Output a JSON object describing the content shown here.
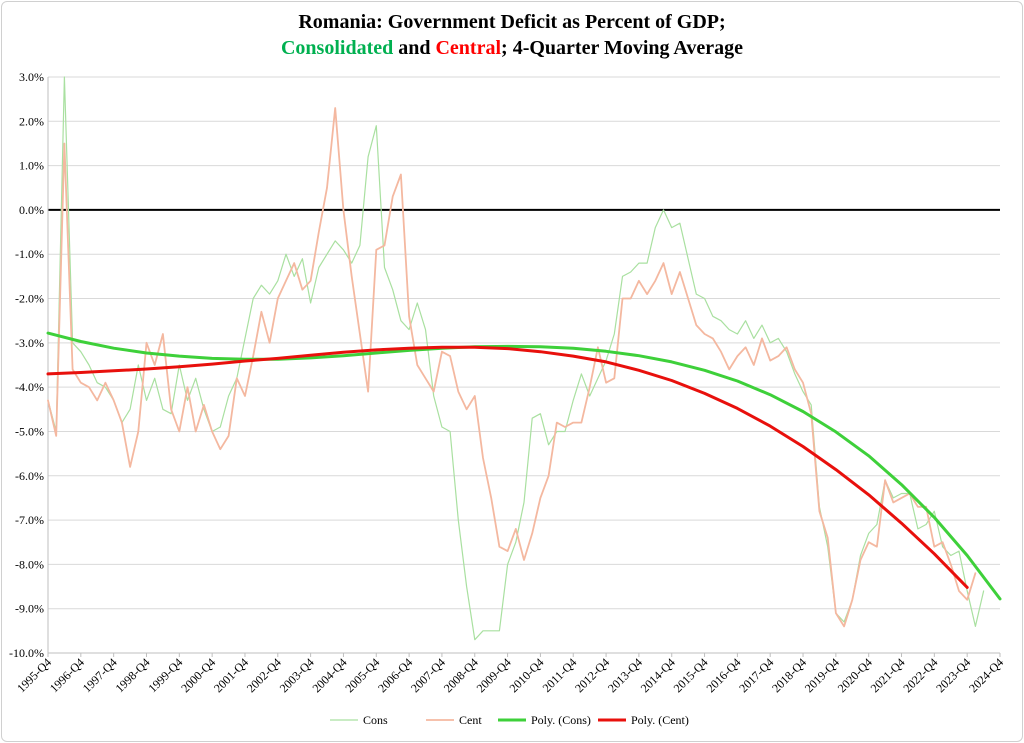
{
  "chart_data": {
    "type": "line",
    "title_prefix": "Romania: Government Deficit as Percent of GDP;",
    "title_line2": [
      {
        "text": "Consolidated",
        "color": "#00b050"
      },
      {
        "text": " and ",
        "color": "#000000"
      },
      {
        "text": "Central",
        "color": "#ff0000"
      },
      {
        "text": "; 4-Quarter Moving Average",
        "color": "#000000"
      }
    ],
    "ylim": [
      -10,
      3
    ],
    "yticks": [
      3,
      2,
      1,
      0,
      -1,
      -2,
      -3,
      -4,
      -5,
      -6,
      -7,
      -8,
      -9,
      -10
    ],
    "ytick_labels": [
      "3.0%",
      "2.0%",
      "1.0%",
      "0.0%",
      "-1.0%",
      "-2.0%",
      "-3.0%",
      "-4.0%",
      "-5.0%",
      "-6.0%",
      "-7.0%",
      "-8.0%",
      "-9.0%",
      "-10.0%"
    ],
    "x_start": {
      "year": 1995,
      "quarter": 4
    },
    "n_quarters": 117,
    "xtick_labels": [
      "1995-Q4",
      "1996-Q4",
      "1997-Q4",
      "1998-Q4",
      "1999-Q4",
      "2000-Q4",
      "2001-Q4",
      "2002-Q4",
      "2003-Q4",
      "2004-Q4",
      "2005-Q4",
      "2006-Q4",
      "2007-Q4",
      "2008-Q4",
      "2009-Q4",
      "2010-Q4",
      "2011-Q4",
      "2012-Q4",
      "2013-Q4",
      "2014-Q4",
      "2015-Q4",
      "2016-Q4",
      "2017-Q4",
      "2018-Q4",
      "2019-Q4",
      "2020-Q4",
      "2021-Q4",
      "2022-Q4",
      "2023-Q4",
      "2024-Q4"
    ],
    "grid": true,
    "legend_position": "bottom-center",
    "series": [
      {
        "name": "Cons",
        "color": "#a9e0a0",
        "width": 1.2,
        "points": [
          [
            0,
            -4.3
          ],
          [
            1,
            -5.0
          ],
          [
            2,
            3.0
          ],
          [
            3,
            -3.0
          ],
          [
            4,
            -3.2
          ],
          [
            5,
            -3.5
          ],
          [
            6,
            -3.9
          ],
          [
            7,
            -4.0
          ],
          [
            8,
            -4.3
          ],
          [
            9,
            -4.8
          ],
          [
            10,
            -4.5
          ],
          [
            11,
            -3.5
          ],
          [
            12,
            -4.3
          ],
          [
            13,
            -3.8
          ],
          [
            14,
            -4.5
          ],
          [
            15,
            -4.6
          ],
          [
            16,
            -3.5
          ],
          [
            17,
            -4.3
          ],
          [
            18,
            -3.8
          ],
          [
            19,
            -4.5
          ],
          [
            20,
            -5.0
          ],
          [
            21,
            -4.9
          ],
          [
            22,
            -4.2
          ],
          [
            23,
            -3.8
          ],
          [
            24,
            -2.9
          ],
          [
            25,
            -2.0
          ],
          [
            26,
            -1.7
          ],
          [
            27,
            -1.9
          ],
          [
            28,
            -1.6
          ],
          [
            29,
            -1.0
          ],
          [
            30,
            -1.5
          ],
          [
            31,
            -1.1
          ],
          [
            32,
            -2.1
          ],
          [
            33,
            -1.3
          ],
          [
            34,
            -1.0
          ],
          [
            35,
            -0.7
          ],
          [
            36,
            -0.9
          ],
          [
            37,
            -1.2
          ],
          [
            38,
            -0.8
          ],
          [
            39,
            1.2
          ],
          [
            40,
            1.9
          ],
          [
            41,
            -1.3
          ],
          [
            42,
            -1.8
          ],
          [
            43,
            -2.5
          ],
          [
            44,
            -2.7
          ],
          [
            45,
            -2.1
          ],
          [
            46,
            -2.7
          ],
          [
            47,
            -4.2
          ],
          [
            48,
            -4.9
          ],
          [
            49,
            -5.0
          ],
          [
            50,
            -7.0
          ],
          [
            51,
            -8.5
          ],
          [
            52,
            -9.7
          ],
          [
            53,
            -9.5
          ],
          [
            54,
            -9.5
          ],
          [
            55,
            -9.5
          ],
          [
            56,
            -8.0
          ],
          [
            57,
            -7.5
          ],
          [
            58,
            -6.6
          ],
          [
            59,
            -4.7
          ],
          [
            60,
            -4.6
          ],
          [
            61,
            -5.3
          ],
          [
            62,
            -5.0
          ],
          [
            63,
            -5.0
          ],
          [
            64,
            -4.3
          ],
          [
            65,
            -3.7
          ],
          [
            66,
            -4.2
          ],
          [
            67,
            -3.8
          ],
          [
            68,
            -3.4
          ],
          [
            69,
            -2.8
          ],
          [
            70,
            -1.5
          ],
          [
            71,
            -1.4
          ],
          [
            72,
            -1.2
          ],
          [
            73,
            -1.2
          ],
          [
            74,
            -0.4
          ],
          [
            75,
            0.0
          ],
          [
            76,
            -0.4
          ],
          [
            77,
            -0.3
          ],
          [
            78,
            -1.1
          ],
          [
            79,
            -1.9
          ],
          [
            80,
            -2.0
          ],
          [
            81,
            -2.4
          ],
          [
            82,
            -2.5
          ],
          [
            83,
            -2.7
          ],
          [
            84,
            -2.8
          ],
          [
            85,
            -2.5
          ],
          [
            86,
            -2.9
          ],
          [
            87,
            -2.6
          ],
          [
            88,
            -3.0
          ],
          [
            89,
            -2.9
          ],
          [
            90,
            -3.2
          ],
          [
            91,
            -3.7
          ],
          [
            92,
            -4.1
          ],
          [
            93,
            -4.4
          ],
          [
            94,
            -6.7
          ],
          [
            95,
            -7.6
          ],
          [
            96,
            -9.1
          ],
          [
            97,
            -9.3
          ],
          [
            98,
            -8.8
          ],
          [
            99,
            -7.8
          ],
          [
            100,
            -7.3
          ],
          [
            101,
            -7.1
          ],
          [
            102,
            -6.1
          ],
          [
            103,
            -6.5
          ],
          [
            104,
            -6.4
          ],
          [
            105,
            -6.4
          ],
          [
            106,
            -7.2
          ],
          [
            107,
            -7.1
          ],
          [
            108,
            -6.8
          ],
          [
            109,
            -7.6
          ],
          [
            110,
            -7.8
          ],
          [
            111,
            -7.7
          ],
          [
            112,
            -8.6
          ],
          [
            113,
            -9.4
          ],
          [
            114,
            -8.6
          ]
        ]
      },
      {
        "name": "Cent",
        "color": "#f4b8a0",
        "width": 1.8,
        "points": [
          [
            0,
            -4.3
          ],
          [
            1,
            -5.1
          ],
          [
            2,
            1.5
          ],
          [
            3,
            -3.6
          ],
          [
            4,
            -3.9
          ],
          [
            5,
            -4.0
          ],
          [
            6,
            -4.3
          ],
          [
            7,
            -3.9
          ],
          [
            8,
            -4.3
          ],
          [
            9,
            -4.8
          ],
          [
            10,
            -5.8
          ],
          [
            11,
            -5.0
          ],
          [
            12,
            -3.0
          ],
          [
            13,
            -3.5
          ],
          [
            14,
            -2.8
          ],
          [
            15,
            -4.5
          ],
          [
            16,
            -5.0
          ],
          [
            17,
            -4.0
          ],
          [
            18,
            -5.0
          ],
          [
            19,
            -4.4
          ],
          [
            20,
            -5.0
          ],
          [
            21,
            -5.4
          ],
          [
            22,
            -5.1
          ],
          [
            23,
            -3.8
          ],
          [
            24,
            -4.2
          ],
          [
            25,
            -3.3
          ],
          [
            26,
            -2.3
          ],
          [
            27,
            -3.0
          ],
          [
            28,
            -2.0
          ],
          [
            29,
            -1.6
          ],
          [
            30,
            -1.2
          ],
          [
            31,
            -1.8
          ],
          [
            32,
            -1.6
          ],
          [
            33,
            -0.5
          ],
          [
            34,
            0.5
          ],
          [
            35,
            2.3
          ],
          [
            36,
            0.0
          ],
          [
            37,
            -1.5
          ],
          [
            38,
            -2.8
          ],
          [
            39,
            -4.1
          ],
          [
            40,
            -0.9
          ],
          [
            41,
            -0.8
          ],
          [
            42,
            0.3
          ],
          [
            43,
            0.8
          ],
          [
            44,
            -2.4
          ],
          [
            45,
            -3.5
          ],
          [
            46,
            -3.8
          ],
          [
            47,
            -4.1
          ],
          [
            48,
            -3.2
          ],
          [
            49,
            -3.3
          ],
          [
            50,
            -4.1
          ],
          [
            51,
            -4.5
          ],
          [
            52,
            -4.2
          ],
          [
            53,
            -5.6
          ],
          [
            54,
            -6.5
          ],
          [
            55,
            -7.6
          ],
          [
            56,
            -7.7
          ],
          [
            57,
            -7.2
          ],
          [
            58,
            -7.9
          ],
          [
            59,
            -7.3
          ],
          [
            60,
            -6.5
          ],
          [
            61,
            -6.0
          ],
          [
            62,
            -4.8
          ],
          [
            63,
            -4.9
          ],
          [
            64,
            -4.8
          ],
          [
            65,
            -4.8
          ],
          [
            66,
            -4.0
          ],
          [
            67,
            -3.1
          ],
          [
            68,
            -3.9
          ],
          [
            69,
            -3.8
          ],
          [
            70,
            -2.0
          ],
          [
            71,
            -2.0
          ],
          [
            72,
            -1.6
          ],
          [
            73,
            -1.9
          ],
          [
            74,
            -1.6
          ],
          [
            75,
            -1.2
          ],
          [
            76,
            -1.9
          ],
          [
            77,
            -1.4
          ],
          [
            78,
            -2.0
          ],
          [
            79,
            -2.6
          ],
          [
            80,
            -2.8
          ],
          [
            81,
            -2.9
          ],
          [
            82,
            -3.2
          ],
          [
            83,
            -3.6
          ],
          [
            84,
            -3.3
          ],
          [
            85,
            -3.1
          ],
          [
            86,
            -3.5
          ],
          [
            87,
            -2.9
          ],
          [
            88,
            -3.4
          ],
          [
            89,
            -3.3
          ],
          [
            90,
            -3.1
          ],
          [
            91,
            -3.6
          ],
          [
            92,
            -3.9
          ],
          [
            93,
            -4.6
          ],
          [
            94,
            -6.8
          ],
          [
            95,
            -7.4
          ],
          [
            96,
            -9.1
          ],
          [
            97,
            -9.4
          ],
          [
            98,
            -8.8
          ],
          [
            99,
            -7.9
          ],
          [
            100,
            -7.5
          ],
          [
            101,
            -7.6
          ],
          [
            102,
            -6.1
          ],
          [
            103,
            -6.6
          ],
          [
            104,
            -6.5
          ],
          [
            105,
            -6.4
          ],
          [
            106,
            -6.7
          ],
          [
            107,
            -6.7
          ],
          [
            108,
            -7.6
          ],
          [
            109,
            -7.5
          ],
          [
            110,
            -8.0
          ],
          [
            111,
            -8.6
          ],
          [
            112,
            -8.8
          ],
          [
            113,
            -8.2
          ]
        ]
      },
      {
        "name": "Poly. (Cons)",
        "color": "#3ed03a",
        "width": 3,
        "points": [
          [
            0,
            -2.78
          ],
          [
            4,
            -2.97
          ],
          [
            8,
            -3.12
          ],
          [
            12,
            -3.23
          ],
          [
            16,
            -3.3
          ],
          [
            20,
            -3.35
          ],
          [
            24,
            -3.37
          ],
          [
            28,
            -3.37
          ],
          [
            32,
            -3.34
          ],
          [
            36,
            -3.29
          ],
          [
            40,
            -3.23
          ],
          [
            44,
            -3.17
          ],
          [
            48,
            -3.12
          ],
          [
            52,
            -3.09
          ],
          [
            56,
            -3.08
          ],
          [
            60,
            -3.09
          ],
          [
            64,
            -3.12
          ],
          [
            68,
            -3.19
          ],
          [
            72,
            -3.29
          ],
          [
            76,
            -3.43
          ],
          [
            80,
            -3.62
          ],
          [
            84,
            -3.86
          ],
          [
            88,
            -4.17
          ],
          [
            92,
            -4.55
          ],
          [
            96,
            -5.01
          ],
          [
            100,
            -5.55
          ],
          [
            104,
            -6.2
          ],
          [
            108,
            -6.94
          ],
          [
            112,
            -7.8
          ],
          [
            116,
            -8.78
          ]
        ]
      },
      {
        "name": "Poly. (Cent)",
        "color": "#e8100c",
        "width": 3,
        "points": [
          [
            0,
            -3.7
          ],
          [
            4,
            -3.67
          ],
          [
            8,
            -3.63
          ],
          [
            12,
            -3.59
          ],
          [
            16,
            -3.54
          ],
          [
            20,
            -3.48
          ],
          [
            24,
            -3.41
          ],
          [
            28,
            -3.35
          ],
          [
            32,
            -3.28
          ],
          [
            36,
            -3.21
          ],
          [
            40,
            -3.16
          ],
          [
            44,
            -3.12
          ],
          [
            48,
            -3.1
          ],
          [
            52,
            -3.1
          ],
          [
            56,
            -3.13
          ],
          [
            60,
            -3.2
          ],
          [
            64,
            -3.3
          ],
          [
            68,
            -3.43
          ],
          [
            72,
            -3.62
          ],
          [
            76,
            -3.85
          ],
          [
            80,
            -4.14
          ],
          [
            84,
            -4.48
          ],
          [
            88,
            -4.88
          ],
          [
            92,
            -5.34
          ],
          [
            96,
            -5.86
          ],
          [
            100,
            -6.43
          ],
          [
            104,
            -7.07
          ],
          [
            108,
            -7.76
          ],
          [
            112,
            -8.52
          ]
        ]
      }
    ]
  }
}
